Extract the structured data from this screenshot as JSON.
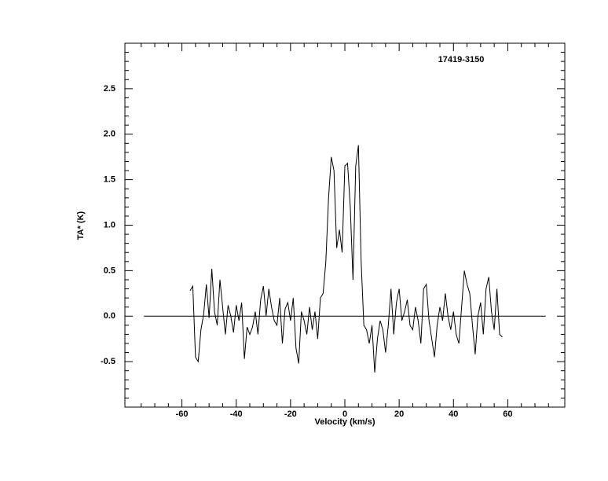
{
  "chart_data": {
    "type": "line",
    "title": "17419-3150",
    "x_label": "Velocity (km/s)",
    "y_label": "TA* (K)",
    "x": [
      -57,
      -56,
      -55,
      -54,
      -53,
      -52,
      -51,
      -50,
      -49,
      -48,
      -47,
      -46,
      -45,
      -44,
      -43,
      -42,
      -41,
      -40,
      -39,
      -38,
      -37,
      -36,
      -35,
      -34,
      -33,
      -32,
      -31,
      -30,
      -29,
      -28,
      -27,
      -26,
      -25,
      -24,
      -23,
      -22,
      -21,
      -20,
      -19,
      -18,
      -17,
      -16,
      -15,
      -14,
      -13,
      -12,
      -11,
      -10,
      -9,
      -8,
      -7,
      -6,
      -5,
      -4,
      -3,
      -2,
      -1,
      0,
      1,
      2,
      3,
      4,
      5,
      6,
      7,
      8,
      9,
      10,
      11,
      12,
      13,
      14,
      15,
      16,
      17,
      18,
      19,
      20,
      21,
      22,
      23,
      24,
      25,
      26,
      27,
      28,
      29,
      30,
      31,
      32,
      33,
      34,
      35,
      36,
      37,
      38,
      39,
      40,
      41,
      42,
      43,
      44,
      45,
      46,
      47,
      48,
      49,
      50,
      51,
      52,
      53,
      54,
      55,
      56,
      57,
      58
    ],
    "series": [
      {
        "color": "#000000",
        "values": [
          0.28,
          0.33,
          -0.45,
          -0.5,
          -0.15,
          0.02,
          0.35,
          -0.02,
          0.52,
          0.05,
          -0.1,
          0.4,
          0.1,
          -0.2,
          0.12,
          0.0,
          -0.18,
          0.12,
          -0.05,
          0.15,
          -0.47,
          -0.12,
          -0.2,
          -0.12,
          0.05,
          -0.2,
          0.18,
          0.33,
          0.0,
          0.3,
          0.1,
          -0.05,
          -0.1,
          0.2,
          -0.3,
          0.08,
          0.15,
          -0.05,
          0.2,
          -0.35,
          -0.52,
          0.05,
          -0.05,
          -0.2,
          0.1,
          -0.15,
          0.05,
          -0.25,
          0.2,
          0.25,
          0.6,
          1.3,
          1.75,
          1.6,
          0.75,
          0.95,
          0.7,
          1.65,
          1.68,
          1.2,
          0.4,
          1.65,
          1.88,
          0.6,
          -0.1,
          -0.15,
          -0.3,
          -0.1,
          -0.62,
          -0.25,
          -0.05,
          -0.15,
          -0.4,
          -0.1,
          0.3,
          -0.2,
          0.15,
          0.3,
          -0.05,
          0.05,
          0.18,
          -0.1,
          -0.15,
          0.1,
          -0.05,
          -0.3,
          0.3,
          0.35,
          -0.05,
          -0.25,
          -0.45,
          -0.1,
          0.1,
          -0.05,
          0.25,
          0.0,
          -0.15,
          0.05,
          -0.2,
          -0.3,
          0.1,
          0.5,
          0.35,
          0.25,
          -0.1,
          -0.42,
          0.0,
          0.15,
          -0.2,
          0.3,
          0.43,
          0.05,
          -0.15,
          0.3,
          -0.2,
          -0.23
        ]
      }
    ],
    "baseline": {
      "x": [
        -74,
        74
      ],
      "y": 0
    },
    "xlim": [
      -81,
      81
    ],
    "ylim": [
      -1,
      3
    ],
    "xticks": [
      -60,
      -40,
      -20,
      0,
      20,
      40,
      60
    ],
    "yticks": [
      -0.5,
      {
        "value": 0,
        "label": "0.0"
      },
      0.5,
      {
        "value": 1,
        "label": "1.0"
      },
      1.5,
      {
        "value": 2,
        "label": "2.0"
      },
      2.5
    ],
    "minor_per_major_x": 4,
    "minor_per_major_y": 5
  }
}
